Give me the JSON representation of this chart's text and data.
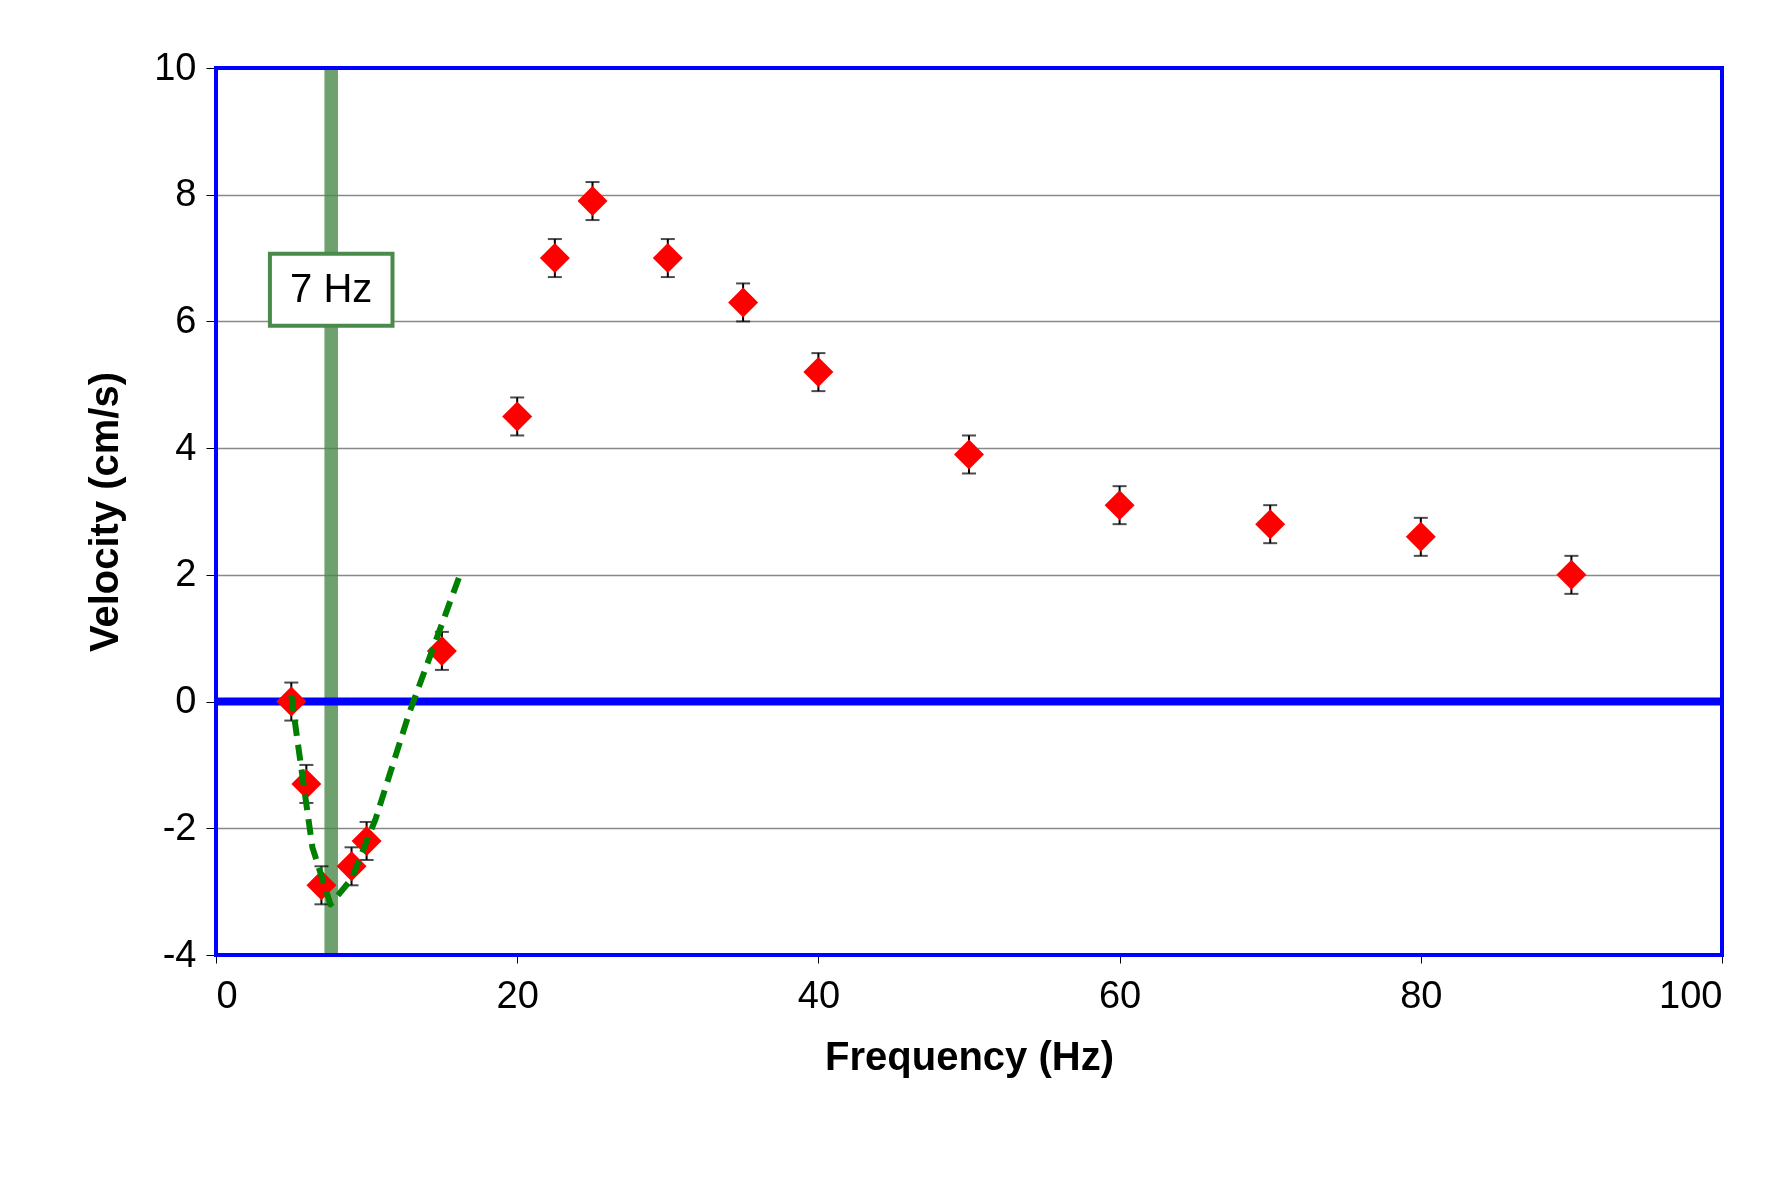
{
  "chart_data": {
    "type": "scatter",
    "xlabel": "Frequency (Hz)",
    "ylabel": "Velocity (cm/s)",
    "x": [
      5,
      6,
      7,
      9,
      10,
      15,
      20,
      22.5,
      25,
      30,
      35,
      40,
      50,
      60,
      70,
      80,
      90
    ],
    "series": [
      {
        "color": "#ff0000",
        "marker": "diamond",
        "values": [
          0,
          -1.3,
          -2.9,
          -2.6,
          -2.2,
          0.8,
          4.5,
          7.0,
          7.9,
          7.0,
          6.3,
          5.2,
          3.9,
          3.1,
          2.8,
          2.6,
          2.0
        ],
        "errors": [
          0.3,
          0.3,
          0.3,
          0.3,
          0.3,
          0.3,
          0.3,
          0.3,
          0.3,
          0.3,
          0.3,
          0.3,
          0.3,
          0.3,
          0.3,
          0.3,
          0.3
        ]
      },
      {
        "type": "line",
        "color": "#008000",
        "line_style": "dashed",
        "marker": "none",
        "x": [
          5,
          5.4,
          6.4,
          7.6,
          9,
          10.6,
          12.8,
          16.2
        ],
        "values": [
          0.1,
          -0.6,
          -2.3,
          -3.2,
          -2.8,
          -1.85,
          -0.2,
          2.0
        ]
      }
    ],
    "ref_lines": [
      {
        "axis": "y",
        "value": 0,
        "color": "#0000ff"
      }
    ],
    "bands": [
      {
        "axis": "x",
        "from": 7.2,
        "to": 8.1,
        "label": "7 Hz",
        "color": "#4a8a4a"
      }
    ],
    "xlim": [
      0,
      100
    ],
    "xticks": [
      0,
      20,
      40,
      60,
      80,
      100
    ],
    "ylim": [
      -4,
      10
    ],
    "yticks": [
      -4,
      -2,
      0,
      2,
      4,
      6,
      8,
      10
    ],
    "grid": "y"
  }
}
